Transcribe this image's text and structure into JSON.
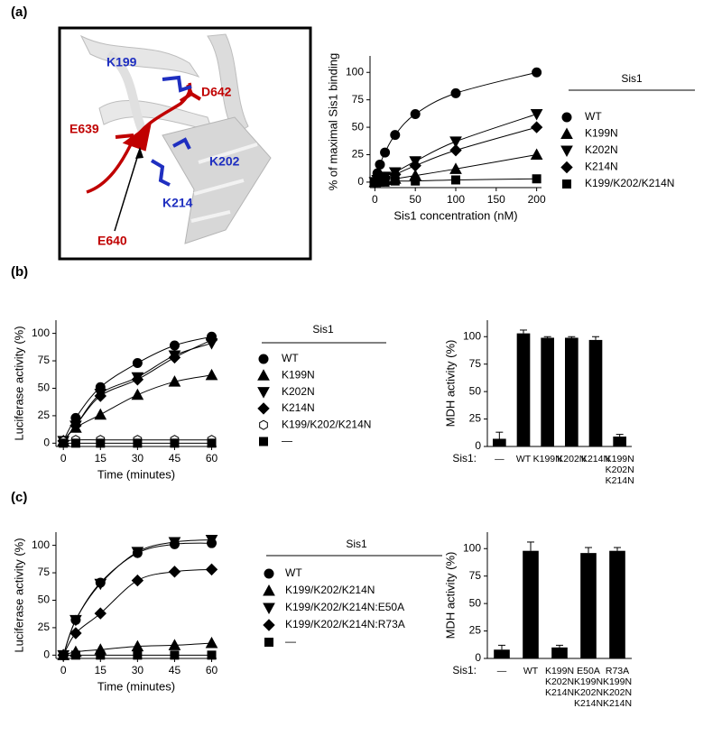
{
  "panel_labels": [
    "(a)",
    "(b)",
    "(c)"
  ],
  "structure_labels": [
    "K199",
    "D642",
    "E639",
    "K202",
    "K214",
    "E640"
  ],
  "chart_data": [
    {
      "type": "scatter",
      "ylabel": "% of maximal Sis1 binding",
      "xlabel": "Sis1 concentration (nM)",
      "x": [
        0,
        3.125,
        6.25,
        12.5,
        25,
        50,
        100,
        200
      ],
      "xlim": [
        -6,
        206
      ],
      "xticks": [
        0,
        50,
        100,
        150,
        200
      ],
      "ylim": [
        -5,
        115
      ],
      "yticks": [
        0,
        25,
        50,
        75,
        100
      ],
      "legend_title": "Sis1",
      "fit_curves": true,
      "series": [
        {
          "name": "WT",
          "color": "#000000",
          "marker": "circle",
          "values": [
            0,
            8,
            16,
            27,
            43,
            62,
            81,
            100
          ]
        },
        {
          "name": "K199N",
          "color": "#000000",
          "marker": "triangle-up",
          "values": [
            0,
            1,
            1,
            2,
            3,
            6,
            12,
            25
          ]
        },
        {
          "name": "K202N",
          "color": "#000000",
          "marker": "triangle-down",
          "values": [
            0,
            2,
            3,
            5,
            9,
            19,
            37,
            62
          ]
        },
        {
          "name": "K214N",
          "color": "#000000",
          "marker": "diamond",
          "values": [
            0,
            1,
            2,
            4,
            7,
            15,
            29,
            50
          ]
        },
        {
          "name": "K199/K202/K214N",
          "color": "#000000",
          "marker": "square",
          "values": [
            0,
            0,
            0,
            0,
            1,
            1,
            2,
            3
          ]
        }
      ]
    },
    {
      "type": "scatter",
      "ylabel": "Luciferase activity (%)",
      "xlabel": "Time (minutes)",
      "x": [
        0,
        5,
        15,
        30,
        45,
        60
      ],
      "xlim": [
        -3,
        62
      ],
      "xticks": [
        0,
        15,
        30,
        45,
        60
      ],
      "ylim": [
        -3,
        112
      ],
      "yticks": [
        0,
        25,
        50,
        75,
        100
      ],
      "legend_title": "Sis1",
      "fit_curves": true,
      "series": [
        {
          "name": "WT",
          "color": "#000000",
          "marker": "circle",
          "values": [
            2,
            23,
            51,
            73,
            89,
            97
          ]
        },
        {
          "name": "K199N",
          "color": "#000000",
          "marker": "triangle-up",
          "values": [
            2,
            14,
            26,
            44,
            56,
            62
          ]
        },
        {
          "name": "K202N",
          "color": "#000000",
          "marker": "triangle-down",
          "values": [
            2,
            16,
            45,
            60,
            80,
            91
          ]
        },
        {
          "name": "K214N",
          "color": "#000000",
          "marker": "diamond",
          "values": [
            2,
            16,
            43,
            58,
            78,
            94
          ]
        },
        {
          "name": "K199/K202/K214N",
          "color": "#000000",
          "marker": "hexagon-open",
          "values": [
            2,
            3,
            3,
            3,
            3,
            3
          ]
        },
        {
          "name": "—",
          "color": "#000000",
          "marker": "square",
          "values": [
            0,
            0,
            0,
            0,
            0,
            0
          ]
        }
      ]
    },
    {
      "type": "bar",
      "ylabel": "MDH activity (%)",
      "category_label": "Sis1:",
      "categories": [
        [
          "—"
        ],
        [
          "WT"
        ],
        [
          "K199N"
        ],
        [
          "K202N"
        ],
        [
          "K214N"
        ],
        [
          "K199N",
          "K202N",
          "K214N"
        ]
      ],
      "values": [
        7,
        103,
        99,
        99,
        97,
        9
      ],
      "errors": [
        6,
        3,
        1,
        1,
        3,
        2
      ],
      "color": "#000000",
      "ylim": [
        0,
        115
      ],
      "yticks": [
        0,
        25,
        50,
        75,
        100
      ]
    },
    {
      "type": "scatter",
      "ylabel": "Luciferase activity (%)",
      "xlabel": "Time (minutes)",
      "x": [
        0,
        5,
        15,
        30,
        45,
        60
      ],
      "xlim": [
        -3,
        62
      ],
      "xticks": [
        0,
        15,
        30,
        45,
        60
      ],
      "ylim": [
        -3,
        112
      ],
      "yticks": [
        0,
        25,
        50,
        75,
        100
      ],
      "legend_title": "Sis1",
      "fit_curves": true,
      "series": [
        {
          "name": "WT",
          "color": "#000000",
          "marker": "circle",
          "values": [
            0,
            32,
            66,
            93,
            101,
            102
          ]
        },
        {
          "name": "K199/K202/K214N",
          "color": "#000000",
          "marker": "triangle-up",
          "values": [
            0,
            3,
            5,
            8,
            9,
            11
          ]
        },
        {
          "name": "K199/K202/K214N:E50A",
          "color": "#000000",
          "marker": "triangle-down",
          "values": [
            0,
            32,
            65,
            94,
            103,
            105
          ]
        },
        {
          "name": "K199/K202/K214N:R73A",
          "color": "#000000",
          "marker": "diamond",
          "values": [
            0,
            20,
            38,
            68,
            76,
            78
          ]
        },
        {
          "name": "—",
          "color": "#000000",
          "marker": "square",
          "values": [
            0,
            0,
            0,
            0,
            0,
            0
          ]
        }
      ]
    },
    {
      "type": "bar",
      "ylabel": "MDH activity (%)",
      "category_label": "Sis1:",
      "categories": [
        [
          "—"
        ],
        [
          "WT"
        ],
        [
          "K199N",
          "K202N",
          "K214N"
        ],
        [
          "E50A",
          "K199N",
          "K202N",
          "K214N"
        ],
        [
          "R73A",
          "K199N",
          "K202N",
          "K214N"
        ]
      ],
      "values": [
        8,
        98,
        10,
        96,
        98
      ],
      "errors": [
        4,
        8,
        2,
        5,
        3
      ],
      "color": "#000000",
      "ylim": [
        0,
        115
      ],
      "yticks": [
        0,
        25,
        50,
        75,
        100
      ]
    }
  ]
}
